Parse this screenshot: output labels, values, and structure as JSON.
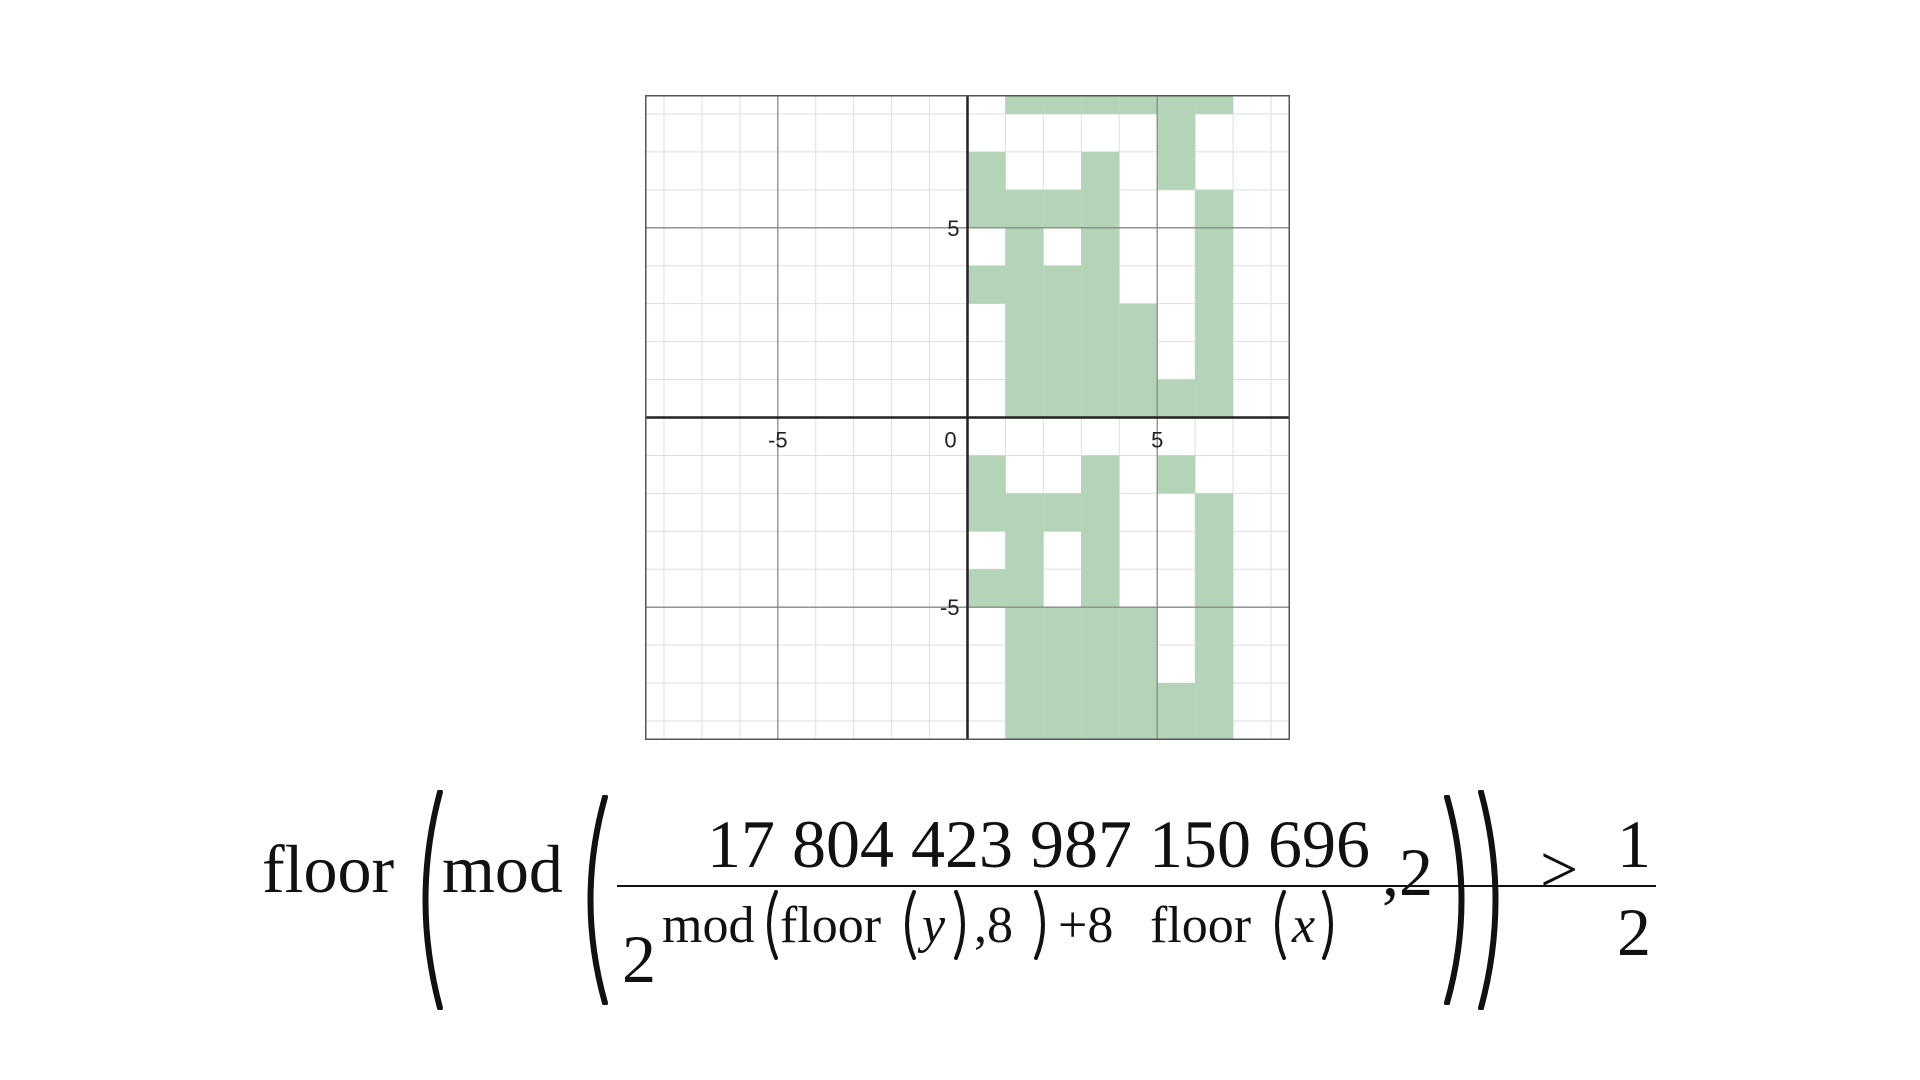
{
  "plot": {
    "xmin": -8.5,
    "xmax": 8.5,
    "ymin": -8.5,
    "ymax": 8.5,
    "major_step": 5,
    "minor_step": 1,
    "grid": true,
    "fill_color": "#b3d4b7",
    "x_tick_labels": [
      {
        "value": -5,
        "label": "-5"
      },
      {
        "value": 0,
        "label": "0"
      },
      {
        "value": 5,
        "label": "5"
      }
    ],
    "y_tick_labels": [
      {
        "value": 5,
        "label": "5"
      },
      {
        "value": -5,
        "label": "-5"
      }
    ],
    "shaded_columns": [
      {
        "x": 0,
        "y_ranges": [
          [
            5,
            7
          ],
          [
            3,
            4
          ],
          [
            -3,
            -1
          ],
          [
            -5,
            -4
          ]
        ]
      },
      {
        "x": 1,
        "y_ranges": [
          [
            0,
            6
          ],
          [
            8,
            9
          ],
          [
            -9,
            -2
          ]
        ]
      },
      {
        "x": 2,
        "y_ranges": [
          [
            0,
            4
          ],
          [
            5,
            6
          ],
          [
            8,
            9
          ],
          [
            -9,
            -5
          ],
          [
            -3,
            -2
          ]
        ]
      },
      {
        "x": 3,
        "y_ranges": [
          [
            0,
            7
          ],
          [
            8,
            9
          ],
          [
            -9,
            -1
          ]
        ]
      },
      {
        "x": 4,
        "y_ranges": [
          [
            0,
            3
          ],
          [
            8,
            9
          ],
          [
            -9,
            -5
          ]
        ]
      },
      {
        "x": 5,
        "y_ranges": [
          [
            0,
            1
          ],
          [
            6,
            9
          ],
          [
            -9,
            -7
          ],
          [
            -2,
            -1
          ]
        ]
      },
      {
        "x": 6,
        "y_ranges": [
          [
            0,
            6
          ],
          [
            8,
            9
          ],
          [
            -9,
            -2
          ]
        ]
      }
    ]
  },
  "formula": {
    "floor_outer": "floor",
    "mod_outer": "mod",
    "numerator": "17 804 423 987 150 696",
    "base": "2",
    "exp_mod": "mod",
    "exp_floor_y": "floor",
    "var_y": "y",
    "exp_comma_8": ",8",
    "exp_plus_8": "+8",
    "exp_floor_x": "floor",
    "var_x": "x",
    "comma_2": ",2",
    "gt": ">",
    "half_num": "1",
    "half_den": "2"
  }
}
